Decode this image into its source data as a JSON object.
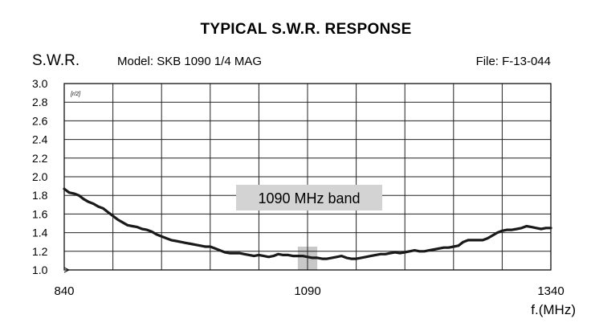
{
  "chart_data": {
    "type": "line",
    "title": "TYPICAL S.W.R. RESPONSE",
    "ylabel": "S.W.R.",
    "model_label": "Model:  SKB 1090 1/4 MAG",
    "file_label": "File:  F-13-044",
    "xlabel": "f.(MHz)",
    "corner_mark": "[r/2]",
    "xlim": [
      840,
      1340
    ],
    "ylim": [
      1.0,
      3.0
    ],
    "x_ticks": [
      {
        "value": 840,
        "label": "840"
      },
      {
        "value": 1090,
        "label": "1090"
      },
      {
        "value": 1340,
        "label": "1340"
      }
    ],
    "y_ticks": [
      {
        "value": 1.0,
        "label": "1.0"
      },
      {
        "value": 1.2,
        "label": "1.2"
      },
      {
        "value": 1.4,
        "label": "1.4"
      },
      {
        "value": 1.6,
        "label": "1.6"
      },
      {
        "value": 1.8,
        "label": "1.8"
      },
      {
        "value": 2.0,
        "label": "2.0"
      },
      {
        "value": 2.2,
        "label": "2.2"
      },
      {
        "value": 2.4,
        "label": "2.4"
      },
      {
        "value": 2.6,
        "label": "2.6"
      },
      {
        "value": 2.8,
        "label": "2.8"
      },
      {
        "value": 3.0,
        "label": "3.0"
      }
    ],
    "grid": true,
    "vertical_gridlines": 10,
    "band": {
      "label": "1090 MHz band",
      "x_range": [
        1080,
        1100
      ]
    },
    "series": [
      {
        "x": [
          840,
          845,
          850,
          855,
          860,
          865,
          870,
          875,
          880,
          885,
          890,
          895,
          900,
          905,
          910,
          915,
          920,
          925,
          930,
          935,
          940,
          945,
          950,
          955,
          960,
          965,
          970,
          975,
          980,
          985,
          990,
          995,
          1000,
          1005,
          1010,
          1015,
          1020,
          1025,
          1030,
          1035,
          1040,
          1045,
          1050,
          1055,
          1060,
          1065,
          1070,
          1075,
          1080,
          1085,
          1090,
          1095,
          1100,
          1105,
          1110,
          1115,
          1120,
          1125,
          1130,
          1135,
          1140,
          1145,
          1150,
          1155,
          1160,
          1165,
          1170,
          1175,
          1180,
          1185,
          1190,
          1195,
          1200,
          1205,
          1210,
          1215,
          1220,
          1225,
          1230,
          1235,
          1240,
          1245,
          1250,
          1255,
          1260,
          1265,
          1270,
          1275,
          1280,
          1285,
          1290,
          1295,
          1300,
          1305,
          1310,
          1315,
          1320,
          1325,
          1330,
          1335,
          1340
        ],
        "values": [
          1.87,
          1.83,
          1.82,
          1.8,
          1.76,
          1.73,
          1.71,
          1.68,
          1.66,
          1.62,
          1.58,
          1.54,
          1.51,
          1.48,
          1.47,
          1.46,
          1.44,
          1.43,
          1.41,
          1.38,
          1.36,
          1.34,
          1.32,
          1.31,
          1.3,
          1.29,
          1.28,
          1.27,
          1.26,
          1.25,
          1.25,
          1.23,
          1.21,
          1.19,
          1.18,
          1.18,
          1.18,
          1.17,
          1.16,
          1.15,
          1.16,
          1.15,
          1.14,
          1.15,
          1.17,
          1.16,
          1.16,
          1.15,
          1.15,
          1.15,
          1.14,
          1.13,
          1.13,
          1.12,
          1.12,
          1.13,
          1.14,
          1.15,
          1.13,
          1.12,
          1.12,
          1.13,
          1.14,
          1.15,
          1.16,
          1.17,
          1.17,
          1.18,
          1.19,
          1.18,
          1.19,
          1.2,
          1.21,
          1.2,
          1.2,
          1.21,
          1.22,
          1.23,
          1.24,
          1.24,
          1.25,
          1.26,
          1.3,
          1.32,
          1.32,
          1.32,
          1.32,
          1.34,
          1.37,
          1.4,
          1.42,
          1.43,
          1.43,
          1.44,
          1.45,
          1.47,
          1.46,
          1.45,
          1.44,
          1.45,
          1.45
        ]
      }
    ]
  }
}
